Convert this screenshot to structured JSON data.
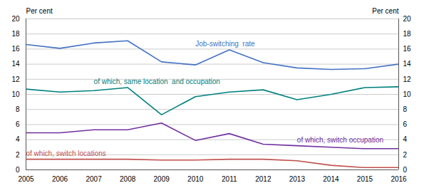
{
  "chart_data": {
    "type": "line",
    "x": [
      2005,
      2006,
      2007,
      2008,
      2009,
      2010,
      2011,
      2012,
      2013,
      2014,
      2015,
      2016
    ],
    "xlim": [
      2005,
      2016
    ],
    "xticks": [
      2005,
      2006,
      2007,
      2008,
      2009,
      2010,
      2011,
      2012,
      2013,
      2014,
      2015,
      2016
    ],
    "ylabel": "Per cent",
    "ylim": [
      0,
      20
    ],
    "yticks": [
      0,
      2,
      4,
      6,
      8,
      10,
      12,
      14,
      16,
      18,
      20
    ],
    "y2label": "Per cent",
    "y2lim": [
      0,
      20
    ],
    "y2ticks": [
      0,
      2,
      4,
      6,
      8,
      10,
      12,
      14,
      16,
      18,
      20
    ],
    "grid": true,
    "series": [
      {
        "name": "Job-switching  rate",
        "color": "#4472C4",
        "values": [
          16.6,
          16.1,
          16.8,
          17.1,
          14.3,
          13.9,
          15.9,
          14.2,
          13.5,
          13.3,
          13.4,
          14.0
        ]
      },
      {
        "name": "of which, same location  and occupation",
        "color": "#008080",
        "values": [
          10.7,
          10.3,
          10.5,
          10.9,
          7.3,
          9.7,
          10.3,
          10.6,
          9.3,
          10.0,
          10.9,
          11.0
        ]
      },
      {
        "name": "of which, switch occupation",
        "color": "#7030A0",
        "values": [
          4.9,
          4.9,
          5.3,
          5.3,
          6.2,
          3.9,
          4.8,
          3.4,
          3.2,
          3.0,
          2.8,
          2.8
        ]
      },
      {
        "name": "of which, switch locations",
        "color": "#C0504D",
        "values": [
          1.4,
          1.4,
          1.4,
          1.4,
          1.3,
          1.3,
          1.4,
          1.4,
          1.2,
          0.6,
          0.3,
          0.3
        ]
      }
    ]
  }
}
